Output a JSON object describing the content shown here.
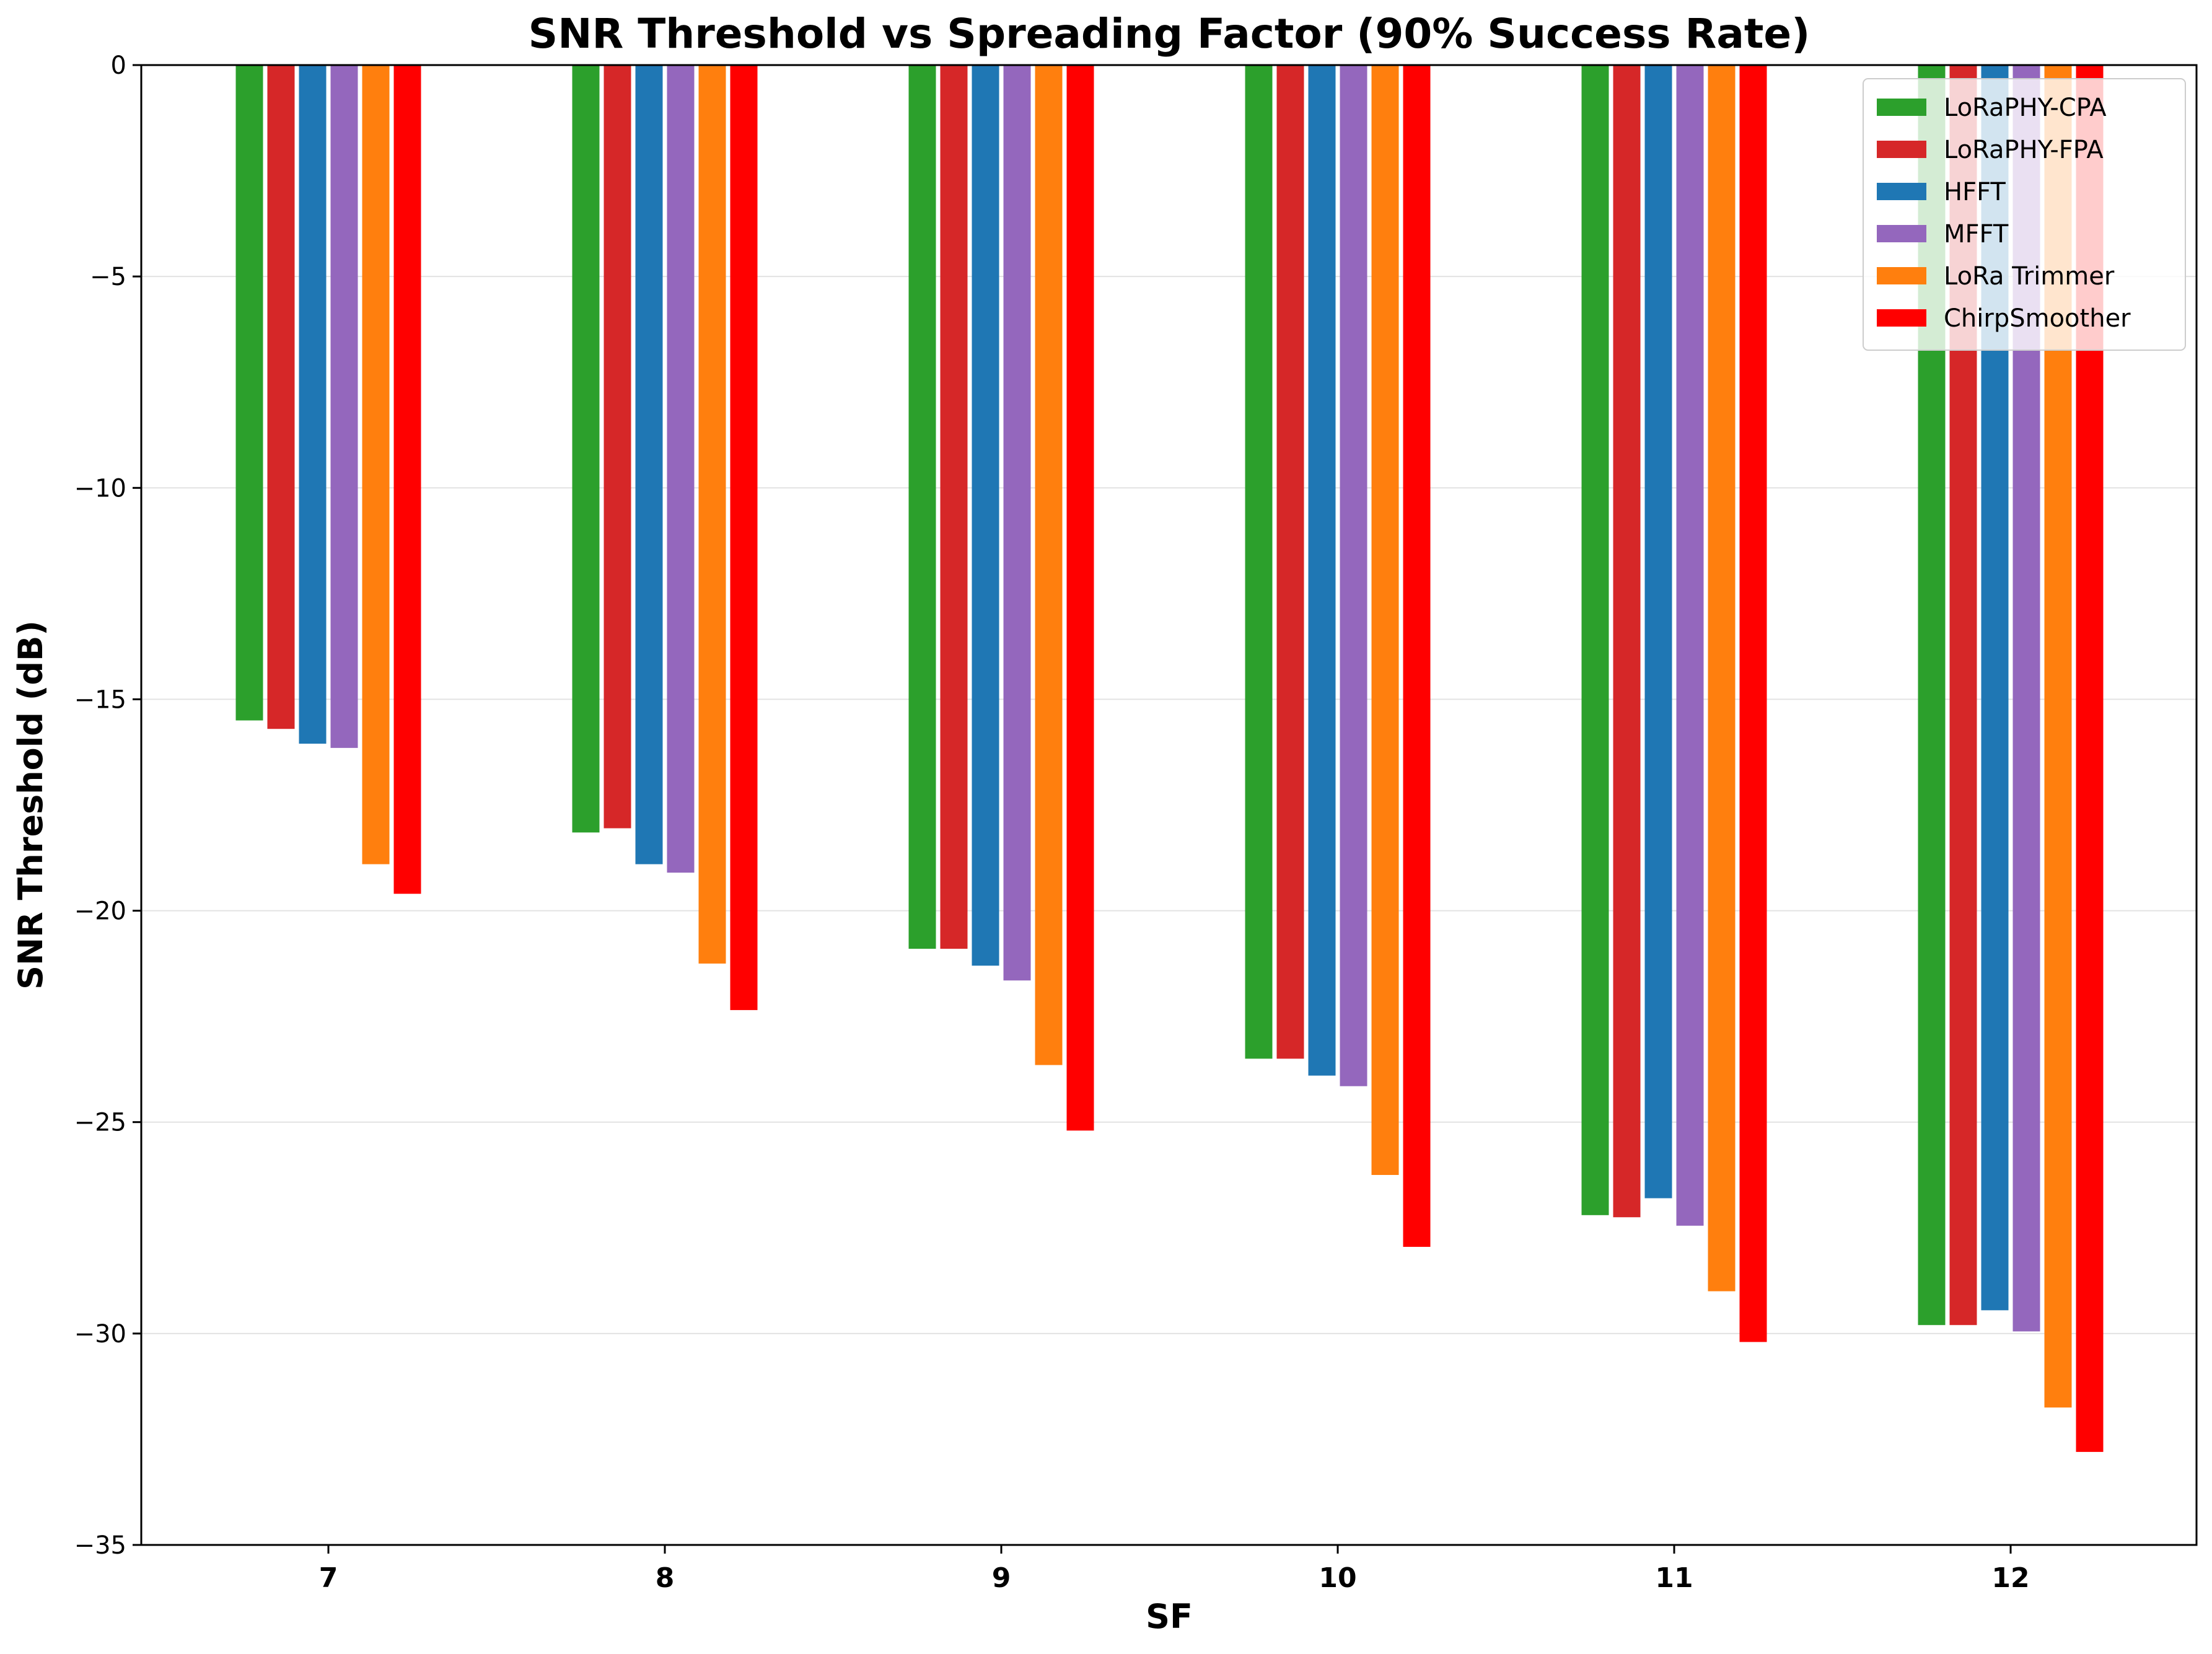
{
  "chart_data": {
    "type": "bar",
    "title": "SNR Threshold vs Spreading Factor (90% Success Rate)",
    "xlabel": "SF",
    "ylabel": "SNR Threshold (dB)",
    "ylim": [
      -35,
      0
    ],
    "yticks": [
      0,
      -5,
      -10,
      -15,
      -20,
      -25,
      -30,
      -35
    ],
    "ytick_labels": [
      "0",
      "−5",
      "−10",
      "−15",
      "−20",
      "−25",
      "−30",
      "−35"
    ],
    "grid": "horizontal",
    "legend_position": "top-right",
    "categories": [
      "7",
      "8",
      "9",
      "10",
      "11",
      "12"
    ],
    "series": [
      {
        "name": "LoRaPHY-CPA",
        "color": "#2ca02c",
        "values": [
          -15.5,
          -18.15,
          -20.9,
          -23.5,
          -27.2,
          -29.8
        ]
      },
      {
        "name": "LoRaPHY-FPA",
        "color": "#d62728",
        "values": [
          -15.7,
          -18.05,
          -20.9,
          -23.5,
          -27.25,
          -29.8
        ]
      },
      {
        "name": "HFFT",
        "color": "#1f77b4",
        "values": [
          -16.05,
          -18.9,
          -21.3,
          -23.9,
          -26.8,
          -29.45
        ]
      },
      {
        "name": "MFFT",
        "color": "#9467bd",
        "values": [
          -16.15,
          -19.1,
          -21.65,
          -24.15,
          -27.45,
          -29.95
        ]
      },
      {
        "name": "LoRa Trimmer",
        "color": "#ff7f0e",
        "values": [
          -18.9,
          -21.25,
          -23.65,
          -26.25,
          -29.0,
          -31.75
        ]
      },
      {
        "name": "ChirpSmoother",
        "color": "#ff0000",
        "values": [
          -19.6,
          -22.35,
          -25.2,
          -27.95,
          -30.2,
          -32.8
        ]
      }
    ]
  }
}
